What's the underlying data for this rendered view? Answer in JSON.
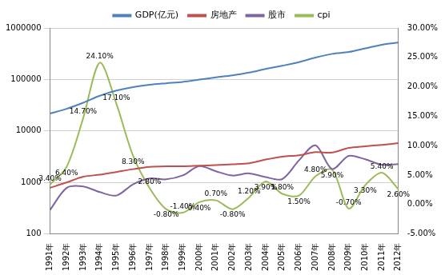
{
  "chart_data": {
    "type": "line",
    "log": "y",
    "grid": true,
    "legend": "top",
    "categories": [
      "1991年",
      "1992年",
      "1993年",
      "1994年",
      "1995年",
      "1996年",
      "1997年",
      "1998年",
      "1999年",
      "2000年",
      "2001年",
      "2002年",
      "2003年",
      "2004年",
      "2005年",
      "2006年",
      "2007年",
      "2008年",
      "2009年",
      "2010年",
      "2011年",
      "2012年"
    ],
    "ylim": [
      100,
      1000000
    ],
    "yticks": [
      100,
      1000,
      10000,
      100000,
      1000000
    ],
    "y2lim": [
      -5,
      30
    ],
    "y2ticks": [
      {
        "value": -5,
        "label": "-5.00%"
      },
      {
        "value": 0,
        "label": "0.00%"
      },
      {
        "value": 5,
        "label": "5.00%"
      },
      {
        "value": 10,
        "label": "10.00%"
      },
      {
        "value": 15,
        "label": "15.00%"
      },
      {
        "value": 20,
        "label": "20.00%"
      },
      {
        "value": 25,
        "label": "25.00%"
      },
      {
        "value": 30,
        "label": "30.00%"
      }
    ],
    "series": [
      {
        "name": "GDP(亿元)",
        "color": "#4f81bd",
        "values": [
          21781,
          26923,
          35334,
          48198,
          60794,
          71177,
          78973,
          84402,
          89677,
          99215,
          109655,
          120333,
          135823,
          159878,
          184937,
          216314,
          265810,
          314045,
          340903,
          401513,
          473104,
          519322
        ]
      },
      {
        "name": "房地产",
        "color": "#c0504d",
        "values": [
          786,
          995,
          1291,
          1409,
          1591,
          1806,
          1997,
          2063,
          2053,
          2112,
          2170,
          2250,
          2359,
          2778,
          3168,
          3367,
          3864,
          3800,
          4681,
          5032,
          5357,
          5791
        ]
      },
      {
        "name": "股市",
        "color": "#8064a2",
        "values": [
          292,
          780,
          833,
          647,
          555,
          917,
          1194,
          1147,
          1367,
          2073,
          1646,
          1358,
          1497,
          1266,
          1161,
          2675,
          5262,
          1821,
          3277,
          2808,
          2199,
          2269
        ]
      },
      {
        "name": "cpi",
        "color": "#9bbb59",
        "axis": "y2",
        "data_labels": true,
        "values": [
          3.4,
          6.4,
          14.7,
          24.1,
          17.1,
          8.3,
          2.8,
          -0.8,
          -1.4,
          0.4,
          0.7,
          -0.8,
          1.2,
          3.9,
          1.8,
          1.5,
          4.8,
          5.9,
          -0.7,
          3.3,
          5.4,
          2.6
        ],
        "value_labels": [
          "3.40%",
          "6.40%",
          "14.70%",
          "24.10%",
          "17.10%",
          "8.30%",
          "2.80%",
          "-0.80%",
          "-1.40%",
          "0.40%",
          "0.70%",
          "-0.80%",
          "1.20%",
          "3.90%",
          "1.80%",
          "1.50%",
          "4.80%",
          "5.90%",
          "-0.70%",
          "3.30%",
          "5.40%",
          "2.60%"
        ]
      }
    ]
  }
}
